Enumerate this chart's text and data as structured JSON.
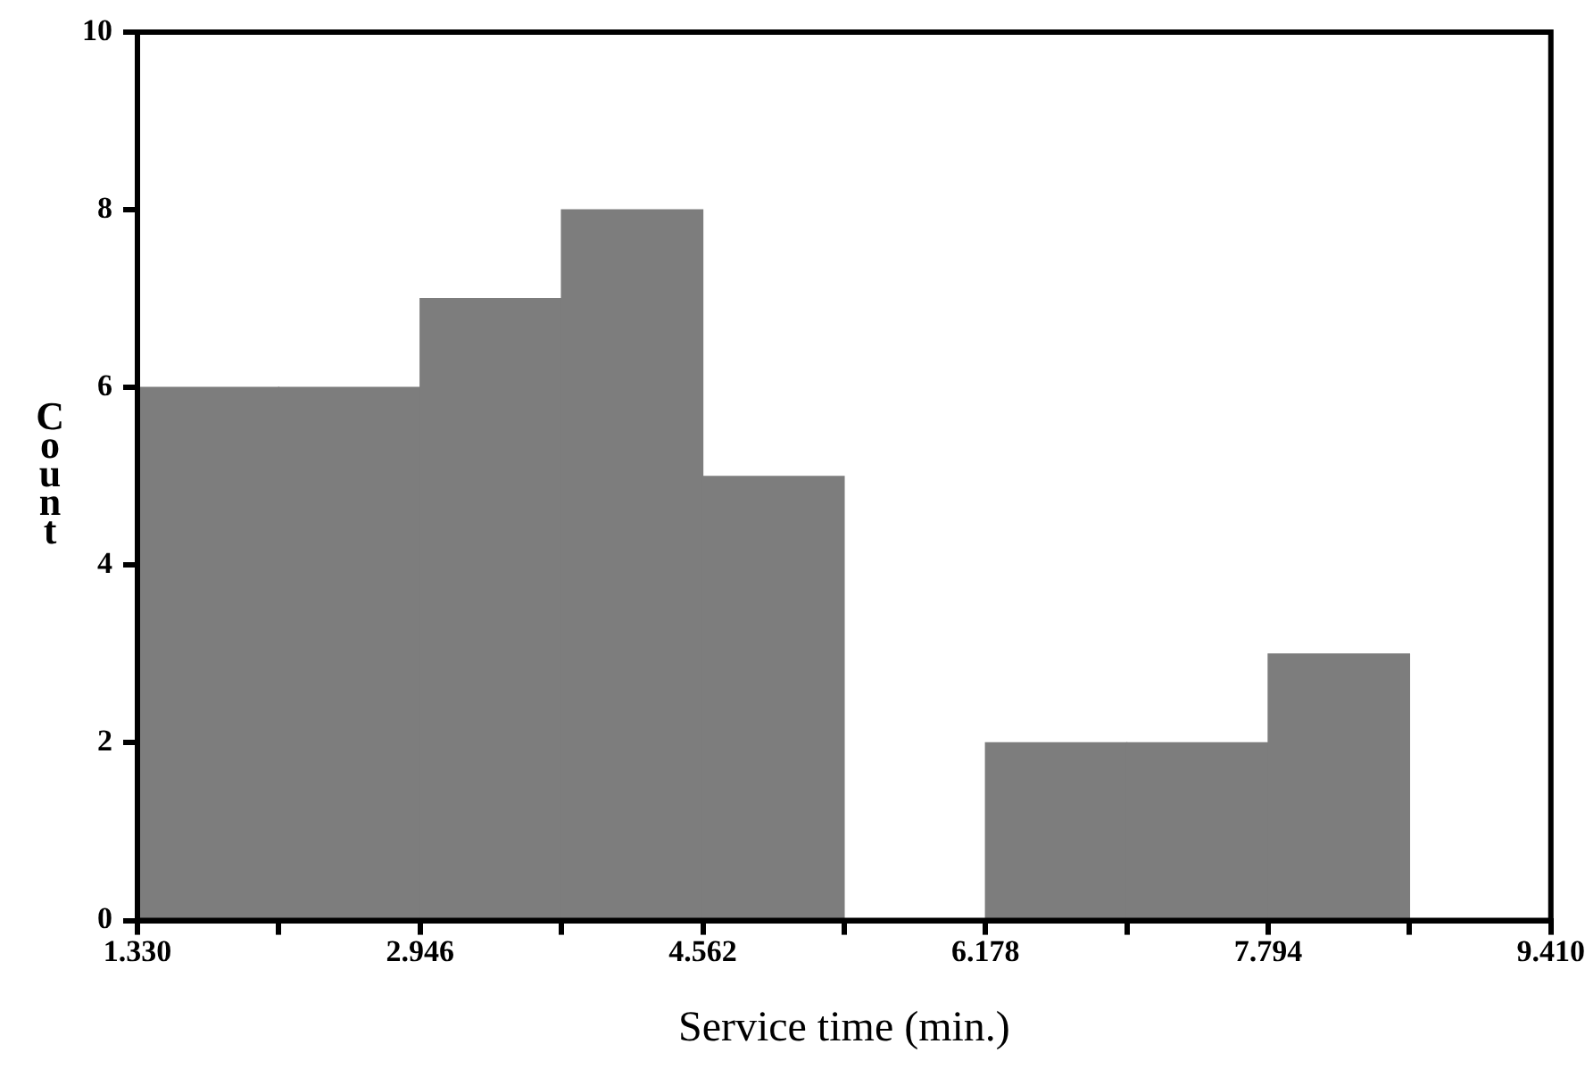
{
  "chart_data": {
    "type": "histogram",
    "xlabel": "Service time (min.)",
    "ylabel": "Count",
    "bins": [
      1.33,
      2.138,
      2.946,
      3.754,
      4.562,
      5.37,
      6.178,
      6.986,
      7.794,
      8.602,
      9.41
    ],
    "values": [
      6,
      6,
      7,
      8,
      5,
      0,
      2,
      2,
      3,
      0
    ],
    "color": "#7d7d7d",
    "xlim": [
      1.33,
      9.41
    ],
    "xticks": [
      {
        "value": 1.33,
        "label": "1.330"
      },
      {
        "value": 2.138,
        "label": null
      },
      {
        "value": 2.946,
        "label": "2.946"
      },
      {
        "value": 3.754,
        "label": null
      },
      {
        "value": 4.562,
        "label": "4.562"
      },
      {
        "value": 5.37,
        "label": null
      },
      {
        "value": 6.178,
        "label": "6.178"
      },
      {
        "value": 6.986,
        "label": null
      },
      {
        "value": 7.794,
        "label": "7.794"
      },
      {
        "value": 8.602,
        "label": null
      },
      {
        "value": 9.41,
        "label": "9.410"
      }
    ],
    "ylim": [
      0,
      10
    ],
    "yticks": [
      0,
      2,
      4,
      6,
      8,
      10
    ],
    "grid": false,
    "legend": false
  }
}
